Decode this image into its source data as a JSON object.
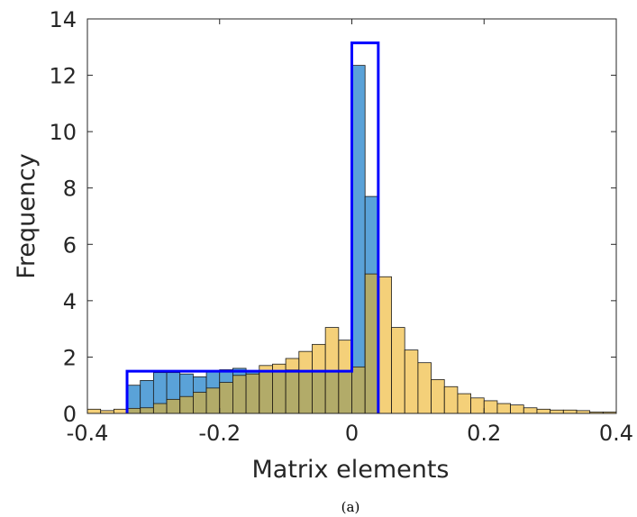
{
  "chart_data": {
    "type": "bar",
    "xlabel": "Matrix elements",
    "ylabel": "Frequency",
    "caption": "(a)",
    "xlim": [
      -0.4,
      0.4
    ],
    "ylim": [
      0,
      14
    ],
    "xticks": [
      "-0.4",
      "-0.2",
      "0",
      "0.2",
      "0.4"
    ],
    "xtick_values": [
      -0.4,
      -0.2,
      0,
      0.2,
      0.4
    ],
    "yticks": [
      "0",
      "2",
      "4",
      "6",
      "8",
      "10",
      "12",
      "14"
    ],
    "ytick_values": [
      0,
      2,
      4,
      6,
      8,
      10,
      12,
      14
    ],
    "bin_edges": [
      -0.4,
      -0.38,
      -0.36,
      -0.34,
      -0.32,
      -0.3,
      -0.28,
      -0.26,
      -0.24,
      -0.22,
      -0.2,
      -0.18,
      -0.16,
      -0.14,
      -0.12,
      -0.1,
      -0.08,
      -0.06,
      -0.04,
      -0.02,
      0,
      0.02,
      0.04,
      0.06,
      0.08,
      0.1,
      0.12,
      0.14,
      0.16,
      0.18,
      0.2,
      0.22,
      0.24,
      0.26,
      0.28,
      0.3,
      0.32,
      0.34,
      0.36,
      0.38,
      0.4
    ],
    "series": [
      {
        "color": "#5aa2d8",
        "opacity": 1,
        "values": [
          0,
          0,
          0,
          1.0,
          1.17,
          1.45,
          1.45,
          1.4,
          1.3,
          1.47,
          1.55,
          1.6,
          1.5,
          1.52,
          1.5,
          1.55,
          1.48,
          1.5,
          1.52,
          1.5,
          12.35,
          7.7,
          0,
          0,
          0,
          0,
          0,
          0,
          0,
          0,
          0,
          0,
          0,
          0,
          0,
          0,
          0,
          0,
          0,
          0
        ]
      },
      {
        "color": "#edb120",
        "opacity": 0.6,
        "values": [
          0.15,
          0.1,
          0.15,
          0.18,
          0.2,
          0.35,
          0.5,
          0.6,
          0.75,
          0.9,
          1.1,
          1.35,
          1.4,
          1.7,
          1.75,
          1.95,
          2.2,
          2.45,
          3.05,
          2.6,
          1.65,
          4.95,
          4.85,
          3.05,
          2.25,
          1.8,
          1.2,
          0.95,
          0.7,
          0.55,
          0.45,
          0.35,
          0.3,
          0.2,
          0.15,
          0.12,
          0.12,
          0.1,
          0.05,
          0.05
        ]
      }
    ],
    "outline": {
      "color": "#0000ff",
      "x": [
        -0.34,
        -0.34,
        0.0,
        0.0,
        0.04,
        0.04
      ],
      "y": [
        0,
        1.5,
        1.5,
        13.15,
        13.15,
        0
      ]
    },
    "grid": false
  }
}
